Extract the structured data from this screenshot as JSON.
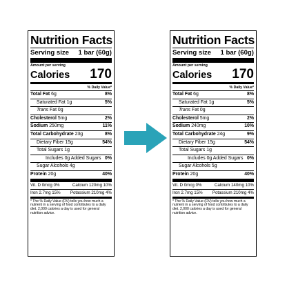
{
  "title": "Nutrition Facts",
  "serving_size_label": "Serving size",
  "amount_per_serving": "Amount per serving",
  "calories_label": "Calories",
  "dv_header": "% Daily Value*",
  "footnote": "* The % Daily Value (DV) tells you how much a nutrient in a serving of food contributes to a daily diet. 2,000 calories a day is used for general nutrition advice.",
  "arrow_color": "#2aa3b8",
  "left": {
    "serving_size": "1 bar (60g)",
    "calories": "170",
    "total_fat": {
      "label": "Total Fat",
      "amount": "6g",
      "dv": "8%"
    },
    "sat_fat": {
      "label": "Saturated Fat",
      "amount": "1g",
      "dv": "5%"
    },
    "trans_fat": {
      "label": "Trans",
      "suffix": "Fat",
      "amount": "0g"
    },
    "cholesterol": {
      "label": "Cholesterol",
      "amount": "5mg",
      "dv": "2%"
    },
    "sodium": {
      "label": "Sodium",
      "amount": "250mg",
      "dv": "11%"
    },
    "carb": {
      "label": "Total Carbohydrate",
      "amount": "23g",
      "dv": "8%"
    },
    "fiber": {
      "label": "Dietary Fiber",
      "amount": "15g",
      "dv": "54%"
    },
    "sugars": {
      "label": "Total Sugars",
      "amount": "1g"
    },
    "added_sugars": {
      "label": "Includes 0g Added Sugars",
      "dv": "0%"
    },
    "sugar_alcohols": {
      "label": "Sugar Alcohols",
      "amount": "4g"
    },
    "protein": {
      "label": "Protein",
      "amount": "20g",
      "dv": "40%"
    },
    "vit_d": "Vit. D 0mcg 0%",
    "calcium": "Calcium 120mg 10%",
    "iron": "Iron 2.7mg 15%",
    "potassium": "Potassium 210mg 4%"
  },
  "right": {
    "serving_size": "1 bar (60g)",
    "calories": "170",
    "total_fat": {
      "label": "Total Fat",
      "amount": "6g",
      "dv": "8%"
    },
    "sat_fat": {
      "label": "Saturated Fat",
      "amount": "1g",
      "dv": "5%"
    },
    "trans_fat": {
      "label": "Trans",
      "suffix": "Fat",
      "amount": "0g"
    },
    "cholesterol": {
      "label": "Cholesterol",
      "amount": "5mg",
      "dv": "2%"
    },
    "sodium": {
      "label": "Sodium",
      "amount": "240mg",
      "dv": "10%"
    },
    "carb": {
      "label": "Total Carbohydrate",
      "amount": "24g",
      "dv": "9%"
    },
    "fiber": {
      "label": "Dietary Fiber",
      "amount": "15g",
      "dv": "54%"
    },
    "sugars": {
      "label": "Total Sugars",
      "amount": "1g"
    },
    "added_sugars": {
      "label": "Includes 0g Added Sugars",
      "dv": "0%"
    },
    "sugar_alcohols": {
      "label": "Sugar Alcohols",
      "amount": "5g"
    },
    "protein": {
      "label": "Protein",
      "amount": "20g",
      "dv": "40%"
    },
    "vit_d": "Vit. D 0mcg 0%",
    "calcium": "Calcium 140mg 10%",
    "iron": "Iron 2.7mg 15%",
    "potassium": "Potassium 210mg 4%"
  }
}
